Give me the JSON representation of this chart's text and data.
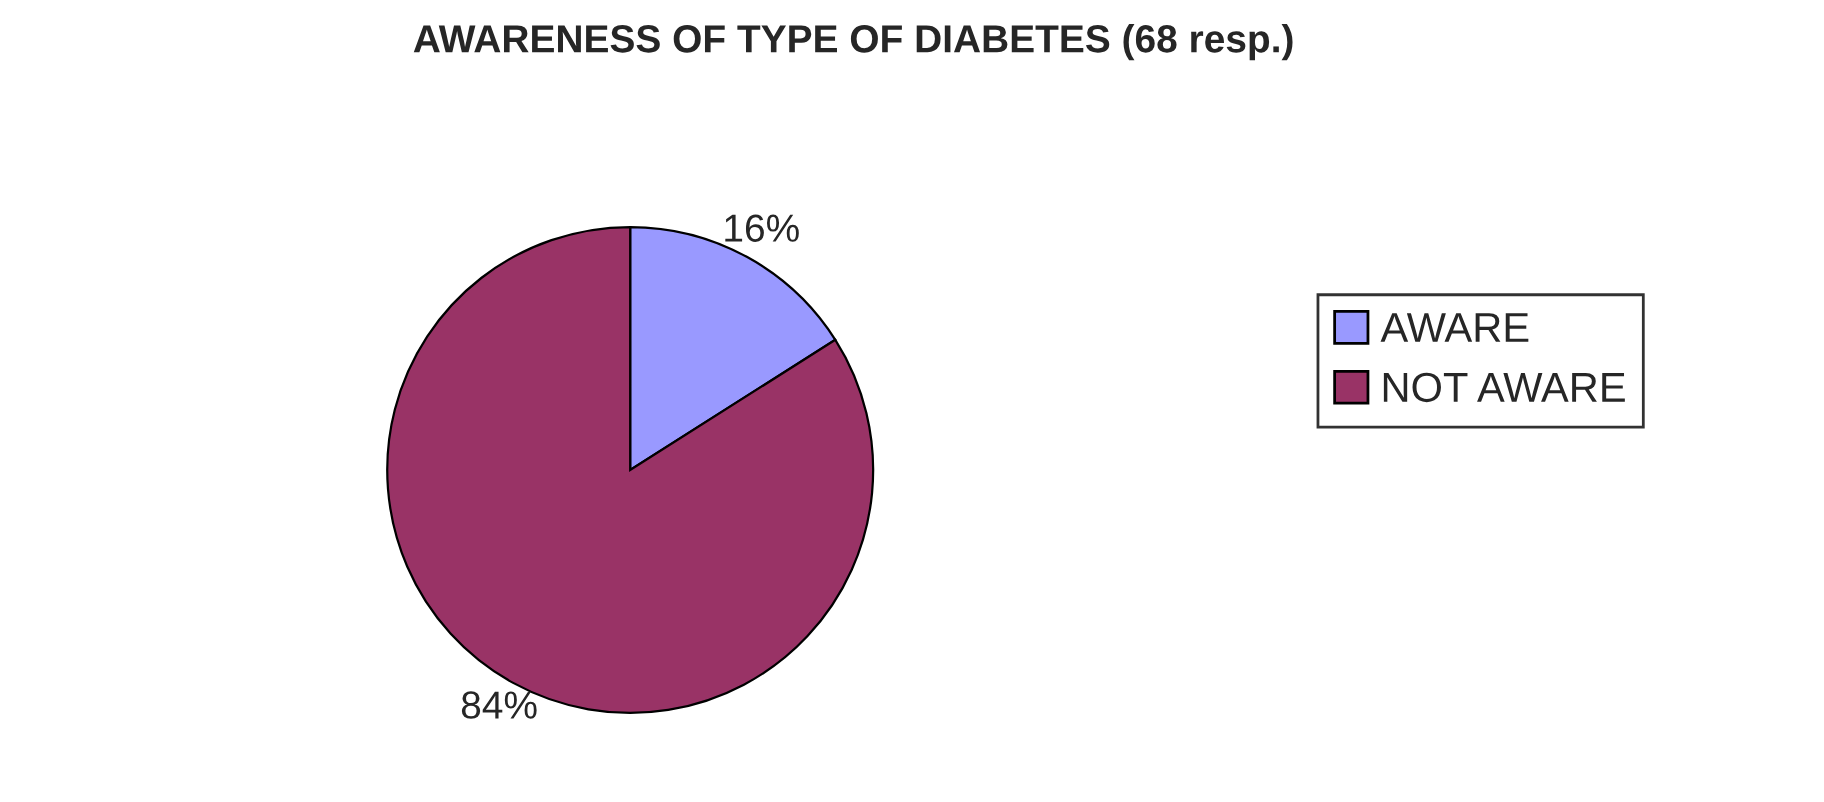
{
  "chart_data": {
    "type": "pie",
    "title": "AWARENESS OF TYPE OF DIABETES (68 resp.)",
    "categories": [
      "AWARE",
      "NOT AWARE"
    ],
    "values": [
      16,
      84
    ],
    "colors": [
      "#9999ff",
      "#993366"
    ],
    "value_labels": [
      "16%",
      "84%"
    ],
    "legend": "right"
  }
}
